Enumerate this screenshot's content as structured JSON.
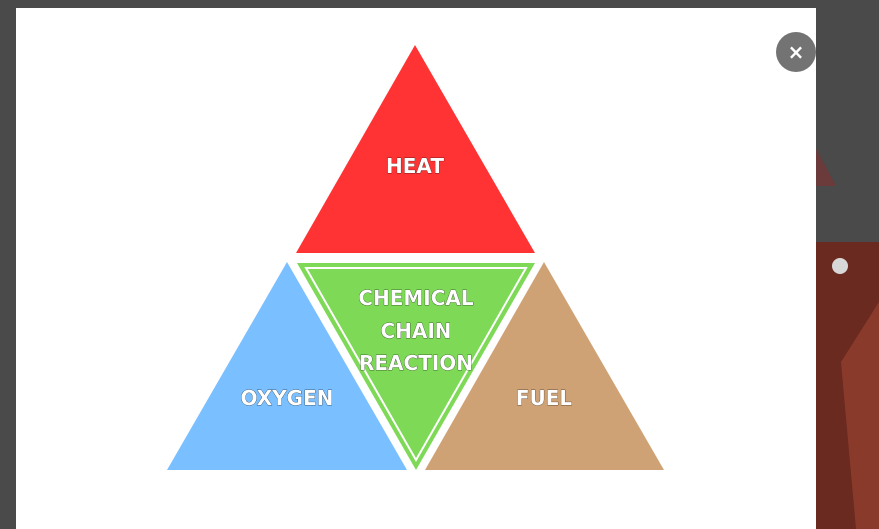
{
  "modal": {
    "close_label": "×"
  },
  "fire_tetrahedron": {
    "heat_label": "HEAT",
    "oxygen_label": "OXYGEN",
    "fuel_label": "FUEL",
    "reaction_label_lines": [
      "CHEMICAL",
      "CHAIN",
      "REACTION"
    ],
    "colors": {
      "heat": "#ff3333",
      "oxygen": "#7abfff",
      "fuel": "#cfa276",
      "reaction": "#7ed957",
      "reaction_outline": "#ffffff"
    }
  }
}
